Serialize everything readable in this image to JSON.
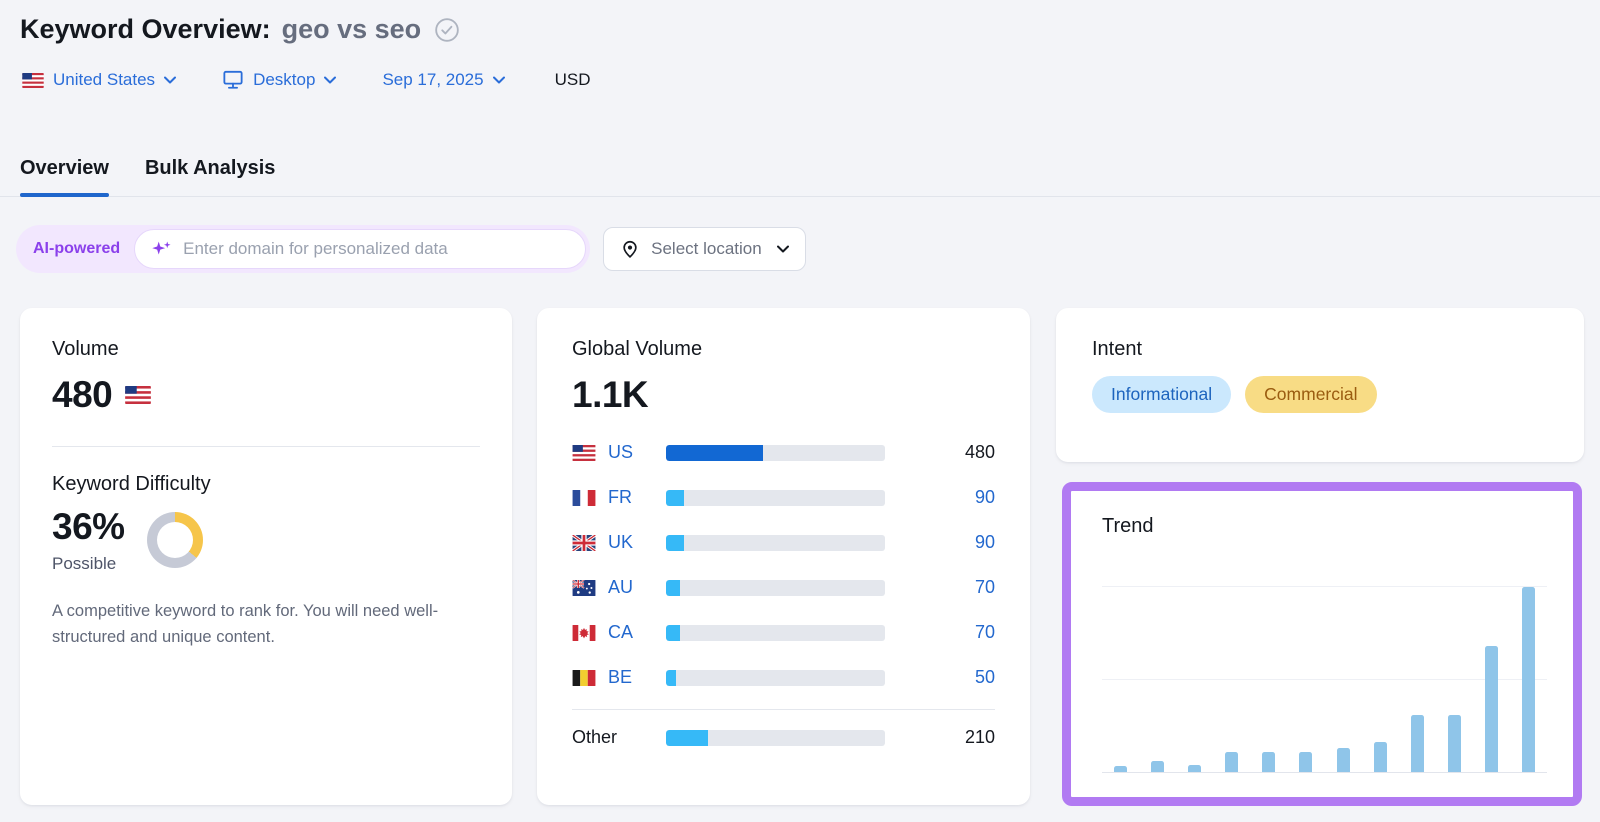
{
  "header": {
    "title": "Keyword Overview:",
    "keyword": "geo vs seo"
  },
  "filters": {
    "country": "United States",
    "device": "Desktop",
    "date": "Sep 17, 2025",
    "currency": "USD"
  },
  "tabs": [
    {
      "label": "Overview",
      "active": true
    },
    {
      "label": "Bulk Analysis",
      "active": false
    }
  ],
  "ai_bar": {
    "badge": "AI-powered",
    "input_placeholder": "Enter domain for personalized data",
    "location_button": "Select location"
  },
  "volume_card": {
    "title": "Volume",
    "value": "480",
    "flag": "US"
  },
  "difficulty": {
    "title": "Keyword Difficulty",
    "percent": "36%",
    "percent_value": 36,
    "label": "Possible",
    "description": "A competitive keyword to rank for. You will need well-structured and unique content."
  },
  "global_volume": {
    "title": "Global Volume",
    "total": "1.1K",
    "rows": [
      {
        "code": "US",
        "value": "480",
        "fraction": 0.444,
        "primary": true
      },
      {
        "code": "FR",
        "value": "90",
        "fraction": 0.083,
        "primary": false
      },
      {
        "code": "UK",
        "value": "90",
        "fraction": 0.083,
        "primary": false
      },
      {
        "code": "AU",
        "value": "70",
        "fraction": 0.065,
        "primary": false
      },
      {
        "code": "CA",
        "value": "70",
        "fraction": 0.065,
        "primary": false
      },
      {
        "code": "BE",
        "value": "50",
        "fraction": 0.046,
        "primary": false
      }
    ],
    "other": {
      "label": "Other",
      "value": "210",
      "fraction": 0.194
    }
  },
  "intent": {
    "title": "Intent",
    "badges": [
      {
        "label": "Informational",
        "type": "informational"
      },
      {
        "label": "Commercial",
        "type": "commercial"
      }
    ]
  },
  "trend": {
    "title": "Trend",
    "chart_data": {
      "type": "bar",
      "bars": 12,
      "x_labels_shown": false,
      "y_labels_shown": false,
      "gridlines": "3 horizontal (top, middle, baseline)",
      "values_relative": [
        0.03,
        0.06,
        0.04,
        0.11,
        0.11,
        0.11,
        0.13,
        0.16,
        0.31,
        0.31,
        0.68,
        1.0
      ],
      "values_est_if_max_480": [
        15,
        30,
        20,
        53,
        53,
        53,
        62,
        77,
        149,
        149,
        326,
        480
      ],
      "ylim": [
        0,
        1
      ],
      "bar_color": "#8FC5E9"
    }
  },
  "icons": {
    "title_check": "check-circle-icon",
    "device": "desktop-monitor-icon",
    "sparkles": "ai-sparkles-icon",
    "location": "location-pin-icon",
    "dropdown": "chevron-down-icon"
  },
  "colors": {
    "page_bg": "#F3F4F8",
    "link_blue": "#2A6DD9",
    "tab_underline": "#1F66CC",
    "bar_primary_blue": "#1268D3",
    "bar_light_blue": "#36B9F7",
    "trend_bar_blue": "#8FC5E9",
    "kd_yellow": "#F6C54A",
    "kd_gray": "#C6CAD6",
    "ai_purple": "#8B40EB",
    "ai_pill_bg": "#F2E7FE",
    "highlight_purple": "#B17AF2",
    "intent_info_bg": "#CBE8FD",
    "intent_info_text": "#1D64BE",
    "intent_comm_bg": "#F8DC85",
    "intent_comm_text": "#9A5C10"
  }
}
